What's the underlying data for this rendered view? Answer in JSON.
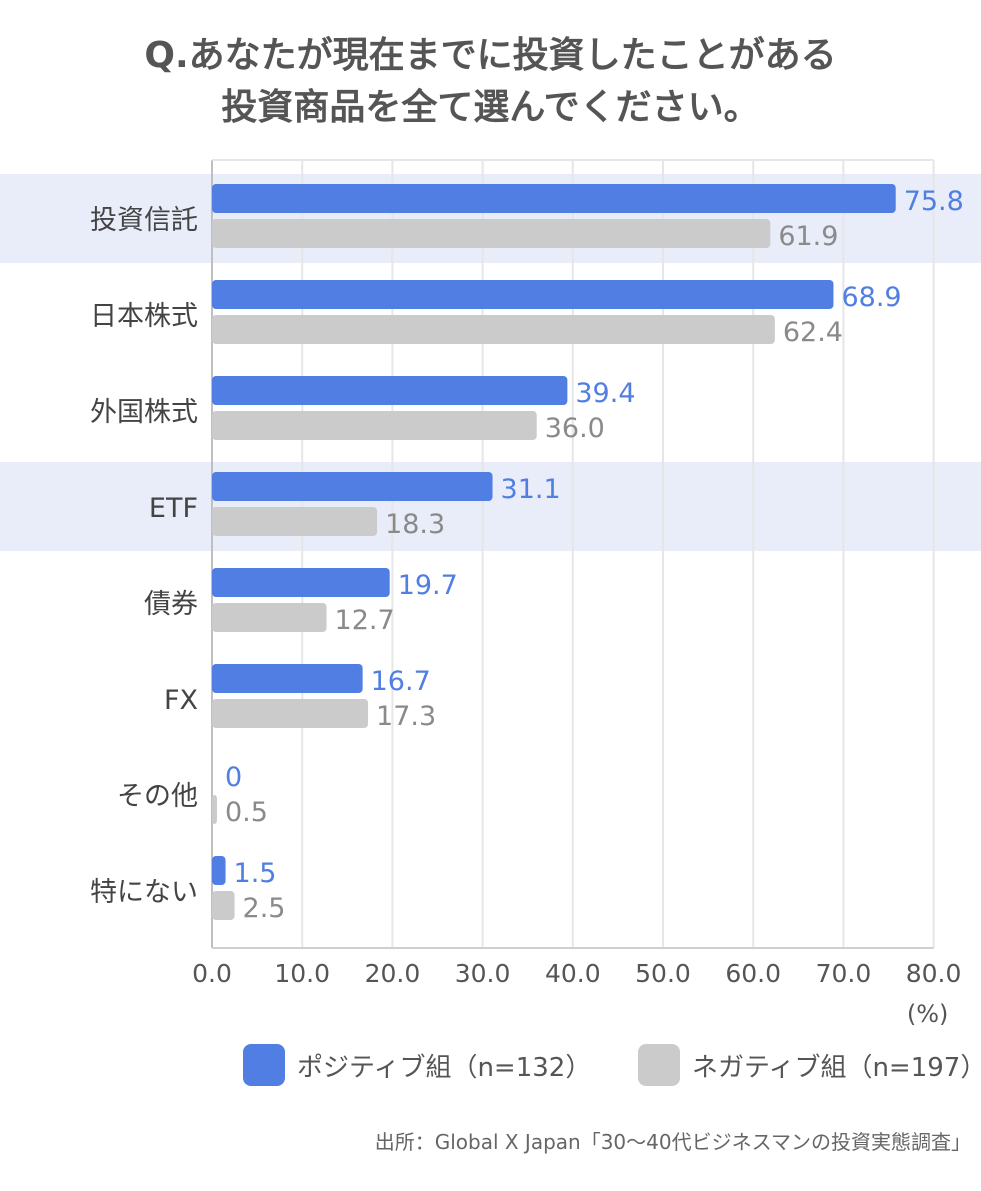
{
  "title_lines": [
    "Q.あなたが現在までに投資したことがある",
    "投資商品を全て選んでください。"
  ],
  "legend": {
    "positive": "ポジティブ組（n=132）",
    "negative": "ネガティブ組（n=197）"
  },
  "source": "出所：Global X Japan「30〜40代ビジネスマンの投資実態調査」",
  "colors": {
    "positive": "#507ee3",
    "negative": "#cbcbcb",
    "highlight": "#e9edfa",
    "grid": "#e6e6e6"
  },
  "chart_data": {
    "type": "bar",
    "orientation": "horizontal",
    "unit": "(%)",
    "categories": [
      "投資信託",
      "日本株式",
      "外国株式",
      "ETF",
      "債券",
      "FX",
      "その他",
      "特にない"
    ],
    "highlighted_categories": [
      "投資信託",
      "ETF"
    ],
    "series": [
      {
        "name": "ポジティブ組（n=132）",
        "values": [
          75.8,
          68.9,
          39.4,
          31.1,
          19.7,
          16.7,
          0,
          1.5
        ],
        "labels": [
          "75.8",
          "68.9",
          "39.4",
          "31.1",
          "19.7",
          "16.7",
          "0",
          "1.5"
        ]
      },
      {
        "name": "ネガティブ組（n=197）",
        "values": [
          61.9,
          62.4,
          36.0,
          18.3,
          12.7,
          17.3,
          0.5,
          2.5
        ],
        "labels": [
          "61.9",
          "62.4",
          "36.0",
          "18.3",
          "12.7",
          "17.3",
          "0.5",
          "2.5"
        ]
      }
    ],
    "xlim": [
      0,
      80
    ],
    "xticks": [
      "0.0",
      "10.0",
      "20.0",
      "30.0",
      "40.0",
      "50.0",
      "60.0",
      "70.0",
      "80.0"
    ],
    "grid": true,
    "legend_position": "bottom"
  }
}
